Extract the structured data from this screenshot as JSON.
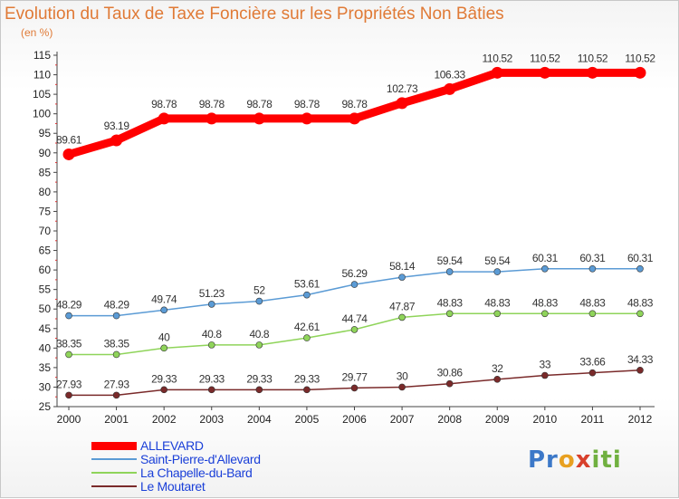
{
  "title": "Evolution du Taux de Taxe Foncière sur les Propriétés Non Bâties",
  "unit_label": "(en %)",
  "logo_text": "Proxiti",
  "chart_data": {
    "type": "line",
    "title": "Evolution du Taux de Taxe Foncière sur les Propriétés Non Bâties",
    "ylabel": "(en %)",
    "x": [
      "2000",
      "2001",
      "2002",
      "2003",
      "2004",
      "2005",
      "2006",
      "2007",
      "2008",
      "2009",
      "2010",
      "2011",
      "2012"
    ],
    "ylim": [
      25,
      115
    ],
    "yticks": [
      25,
      30,
      35,
      40,
      45,
      50,
      55,
      60,
      65,
      70,
      75,
      80,
      85,
      90,
      95,
      100,
      105,
      110,
      115
    ],
    "grid": false,
    "legend": "bottom-left",
    "series": [
      {
        "name": "ALLEVARD",
        "color": "#ff0000",
        "values": [
          89.61,
          93.19,
          98.78,
          98.78,
          98.78,
          98.78,
          98.78,
          102.73,
          106.33,
          110.52,
          110.52,
          110.52,
          110.52
        ],
        "labels": [
          "89.61",
          "93.19",
          "98.78",
          "98.78",
          "98.78",
          "98.78",
          "98.78",
          "102.73",
          "106.33",
          "110.52",
          "110.52",
          "110.52",
          "110.52"
        ]
      },
      {
        "name": "Saint-Pierre-d'Allevard",
        "color": "#5b9bd5",
        "values": [
          48.29,
          48.29,
          49.74,
          51.23,
          52,
          53.61,
          56.29,
          58.14,
          59.54,
          59.54,
          60.31,
          60.31,
          60.31
        ],
        "labels": [
          "48.29",
          "48.29",
          "49.74",
          "51.23",
          "52",
          "53.61",
          "56.29",
          "58.14",
          "59.54",
          "59.54",
          "60.31",
          "60.31",
          "60.31"
        ]
      },
      {
        "name": "La Chapelle-du-Bard",
        "color": "#8fd45a",
        "values": [
          38.35,
          38.35,
          40,
          40.8,
          40.8,
          42.61,
          44.74,
          47.87,
          48.83,
          48.83,
          48.83,
          48.83,
          48.83
        ],
        "labels": [
          "38.35",
          "38.35",
          "40",
          "40.8",
          "40.8",
          "42.61",
          "44.74",
          "47.87",
          "48.83",
          "48.83",
          "48.83",
          "48.83",
          "48.83"
        ]
      },
      {
        "name": "Le Moutaret",
        "color": "#7a2a2a",
        "values": [
          27.93,
          27.93,
          29.33,
          29.33,
          29.33,
          29.33,
          29.77,
          30,
          30.86,
          32,
          33,
          33.66,
          34.33
        ],
        "labels": [
          "27.93",
          "27.93",
          "29.33",
          "29.33",
          "29.33",
          "29.33",
          "29.77",
          "30",
          "30.86",
          "32",
          "33",
          "33.66",
          "34.33"
        ]
      }
    ]
  }
}
